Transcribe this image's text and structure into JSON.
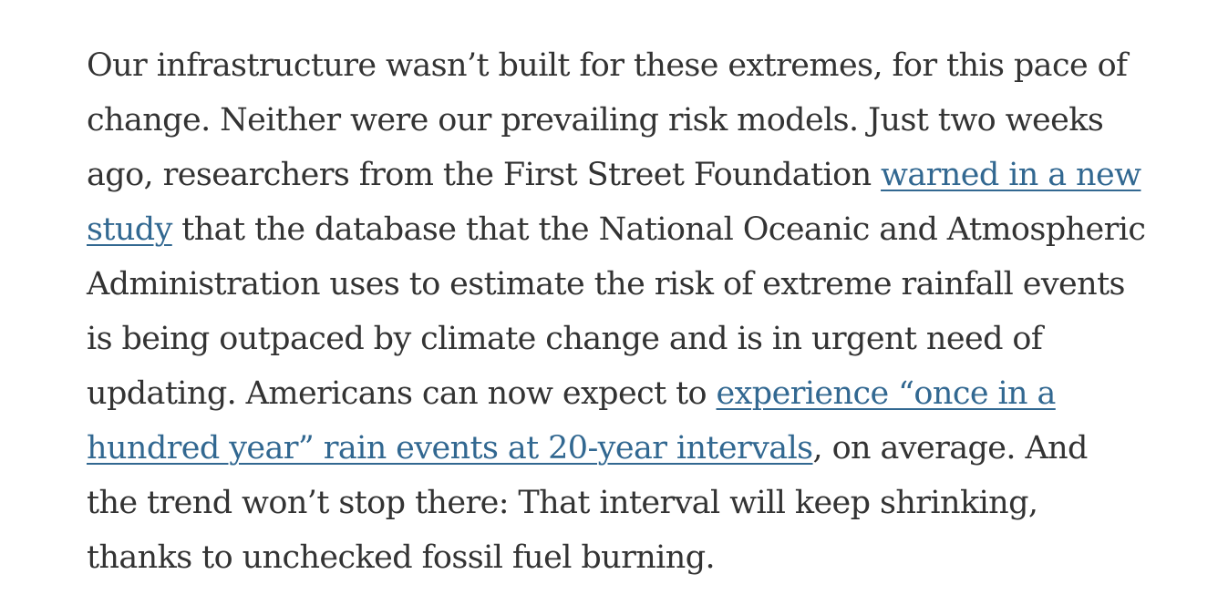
{
  "article": {
    "lines": [
      {
        "parts": [
          {
            "text": "Our infrastructure wasn’t built for these extremes, for this pace of"
          }
        ]
      },
      {
        "parts": [
          {
            "text": "change. Neither were our prevailing risk models. Just two weeks"
          }
        ]
      },
      {
        "parts": [
          {
            "text": "ago, researchers from the First Street Foundation "
          },
          {
            "text": "warned in a new",
            "link": true
          }
        ]
      },
      {
        "parts": [
          {
            "text": "study",
            "link": true
          },
          {
            "text": " that the database that the National Oceanic and Atmospheric"
          }
        ]
      },
      {
        "parts": [
          {
            "text": "Administration uses to estimate the risk of extreme rainfall events"
          }
        ]
      },
      {
        "parts": [
          {
            "text": "is being outpaced by climate change and is in urgent need of"
          }
        ]
      },
      {
        "parts": [
          {
            "text": "updating. Americans can now expect to "
          },
          {
            "text": "experience “once in a",
            "link": true
          }
        ]
      },
      {
        "parts": [
          {
            "text": "hundred year” rain events at 20-year intervals",
            "link": true
          },
          {
            "text": ", on average. And"
          }
        ]
      },
      {
        "parts": [
          {
            "text": "the trend won’t stop there: That interval will keep shrinking,"
          }
        ]
      },
      {
        "parts": [
          {
            "text": "thanks to unchecked fossil fuel burning."
          }
        ]
      }
    ],
    "colors": {
      "text": "#333333",
      "link": "#326891"
    }
  }
}
